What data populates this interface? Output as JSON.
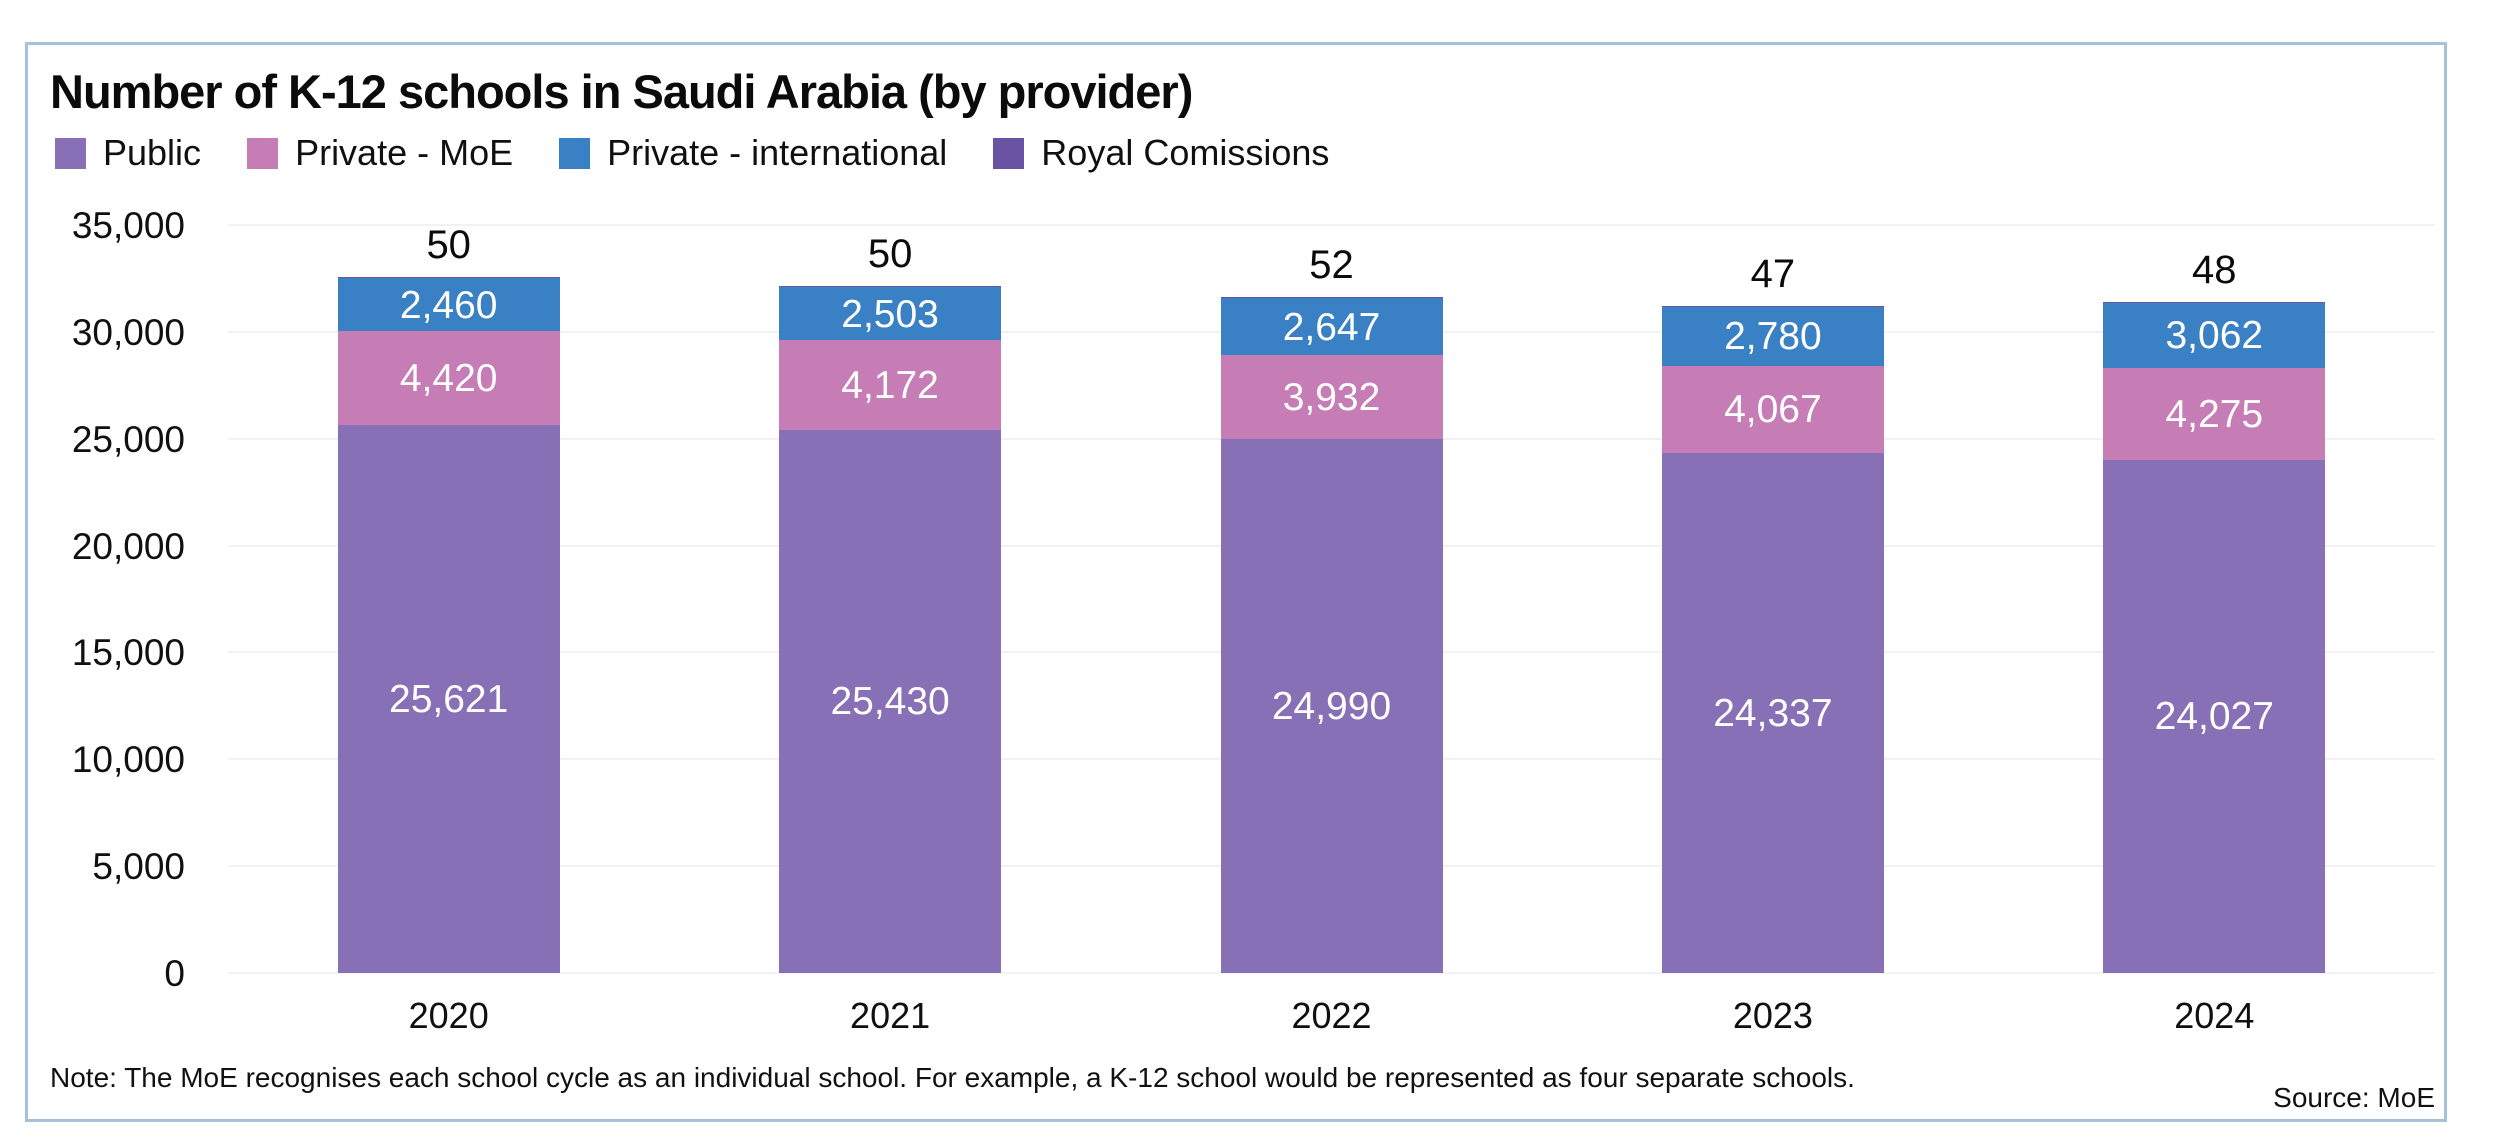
{
  "header": {
    "title": "Number of K-12 schools in Saudi Arabia (by provider)"
  },
  "footer": {
    "note": "Note: The MoE recognises each school cycle as an individual school. For example, a K-12 school would be represented as four separate schools.",
    "source": "Source: MoE"
  },
  "colors": {
    "card_border": "#a7c1da",
    "gridline": "#f2f2f4",
    "bar_value_text": "#ffffff",
    "axis_text": "#101010"
  },
  "chart_data": {
    "type": "bar",
    "stacked": true,
    "title": "Number of K-12 schools in Saudi Arabia (by provider)",
    "categories": [
      "2020",
      "2021",
      "2022",
      "2023",
      "2024"
    ],
    "series": [
      {
        "name": "Public",
        "color": "#8770b5",
        "values": [
          25621,
          25430,
          24990,
          24337,
          24027
        ]
      },
      {
        "name": "Private - MoE",
        "color": "#c67cb5",
        "values": [
          4420,
          4172,
          3932,
          4067,
          4275
        ]
      },
      {
        "name": "Private - international",
        "color": "#3a80c4",
        "values": [
          2460,
          2503,
          2647,
          2780,
          3062
        ]
      },
      {
        "name": "Royal Comissions",
        "color": "#6a53a3",
        "values": [
          50,
          50,
          52,
          47,
          48
        ]
      }
    ],
    "totals": [
      32551,
      32155,
      31621,
      31231,
      31412
    ],
    "xlabel": "",
    "ylabel": "",
    "ylim": [
      0,
      35000
    ],
    "ytick_step": 5000,
    "yticks": [
      "0",
      "5,000",
      "10,000",
      "15,000",
      "20,000",
      "25,000",
      "30,000",
      "35,000"
    ],
    "grid": true,
    "legend_position": "top",
    "value_labels": "inside segments; last series labelled in black above each bar"
  }
}
